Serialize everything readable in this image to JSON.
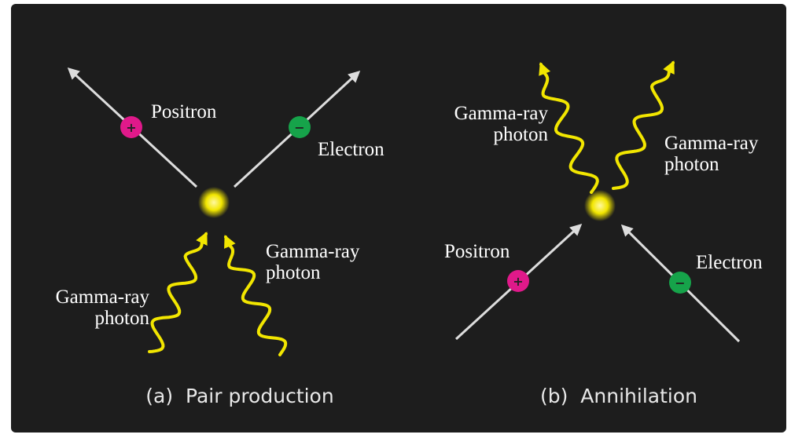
{
  "panels": [
    {
      "caption": "(a)  Pair production",
      "positron": {
        "label": "Positron",
        "sign": "+"
      },
      "electron": {
        "label": "Electron",
        "sign": "−"
      },
      "photons": [
        [
          "Gamma-ray",
          "photon"
        ],
        [
          "Gamma-ray",
          "photon"
        ]
      ]
    },
    {
      "caption": "(b)  Annihilation",
      "positron": {
        "label": "Positron",
        "sign": "+"
      },
      "electron": {
        "label": "Electron",
        "sign": "−"
      },
      "photons": [
        [
          "Gamma-ray",
          "photon"
        ],
        [
          "Gamma-ray",
          "photon"
        ]
      ]
    }
  ]
}
